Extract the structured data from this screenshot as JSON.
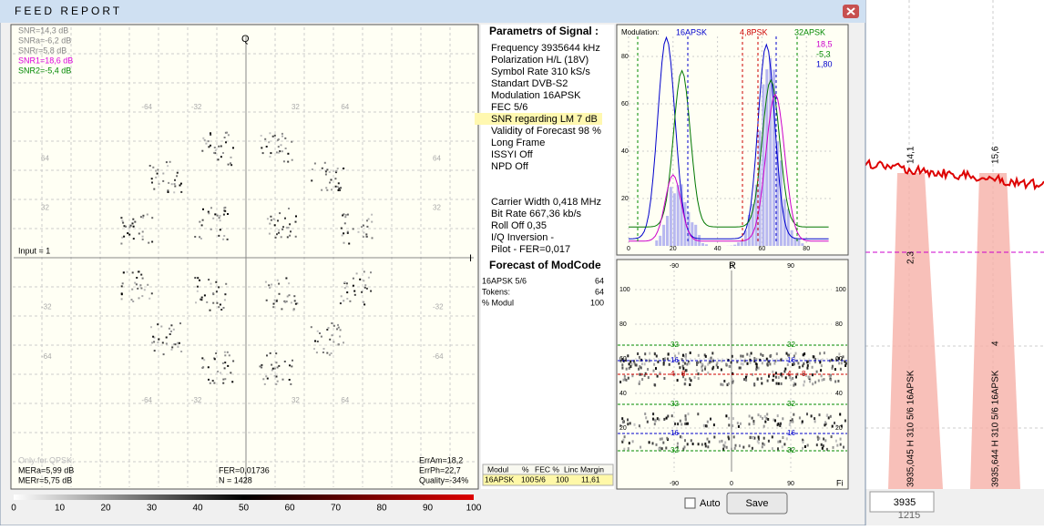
{
  "window": {
    "title": "FEED  REPORT"
  },
  "constellation": {
    "snr": [
      "SNR=14,3 dB",
      "SNRa=-6,2 dB",
      "SNRr=5,8 dB",
      "SNR1=18,6 dB",
      "SNR2=-5,4 dB"
    ],
    "q": "Q",
    "i": "I",
    "input": "Input = 1",
    "grid_labels": [
      "-64",
      "-32",
      "32",
      "64"
    ],
    "bottom_left": [
      "Only for QPSK:",
      "MERa=5,99 dB",
      "MERr=5,75 dB"
    ],
    "bottom_mid": [
      "FER=0,01736",
      "N = 1428"
    ],
    "bottom_right": [
      "ErrAm=18,2",
      "ErrPh=22,7",
      "Quality=-34%"
    ]
  },
  "colorbar": {
    "ticks": [
      "0",
      "10",
      "20",
      "30",
      "40",
      "50",
      "60",
      "70",
      "80",
      "90",
      "100"
    ]
  },
  "params": {
    "title": "Parametrs of Signal :",
    "lines": [
      "Frequency  3935644 kHz",
      "Polarization  H/L (18V)",
      "Symbol Rate  310 kS/s",
      "Standart  DVB-S2",
      "Modulation  16APSK",
      "FEC  5/6",
      "SNR regarding LM  7 dB",
      "Validity of Forecast  98 %",
      "Long Frame",
      "ISSYI  Off",
      "NPD  Off"
    ],
    "lines2": [
      "Carrier Width  0,418 MHz",
      "Bit Rate  667,36 kb/s",
      "Roll Off  0,35",
      "I/Q Inversion  -",
      "Pilot   -        FER=0,017"
    ]
  },
  "forecast": {
    "title": "Forecast of ModCode",
    "rows": [
      [
        "16APSK 5/6",
        "64"
      ],
      [
        "Tokens:",
        "64"
      ],
      [
        "% Modul",
        "100"
      ]
    ]
  },
  "histogram": {
    "label": "Modulation:",
    "mods": [
      "16APSK",
      "4,8PSK",
      "32APSK"
    ],
    "legend": [
      "18,5",
      "-5,3",
      "1,80"
    ],
    "xticks": [
      "0",
      "20",
      "40",
      "60",
      "80"
    ],
    "yticks": [
      "20",
      "40",
      "60",
      "80"
    ]
  },
  "polar": {
    "r": "R",
    "fi": "Fi",
    "xticks": [
      "-90",
      "0",
      "90"
    ],
    "yticks": [
      "100",
      "80",
      "60",
      "40",
      "20"
    ],
    "rings": [
      "32",
      "16",
      "4",
      "8"
    ]
  },
  "table": {
    "header": [
      "Modul",
      "%",
      "FEC %",
      "Linc Margin"
    ],
    "row": [
      "16APSK",
      "100",
      "5/6",
      "100",
      "11,61"
    ]
  },
  "controls": {
    "auto": "Auto",
    "save": "Save"
  },
  "spectrum": {
    "peaks": [
      "14,1",
      "15,6"
    ],
    "levels": [
      "2,3",
      "4"
    ],
    "carriers": [
      "3935,045  H    310 5/6 16APSK",
      "3935,644  H    310 5/6 16APSK"
    ],
    "freq": "3935",
    "span": "1215"
  }
}
